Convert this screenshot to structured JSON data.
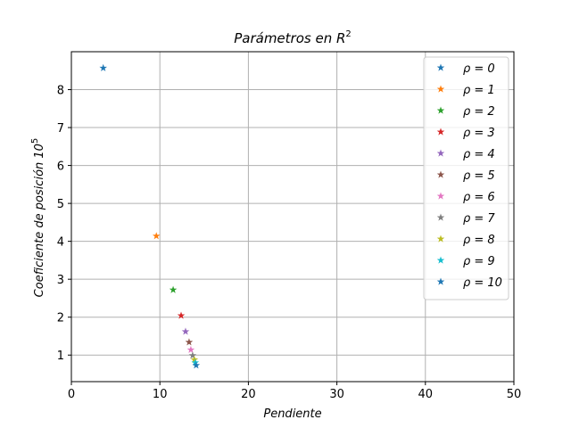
{
  "chart_data": {
    "type": "scatter",
    "title": "Parámetros en R",
    "title_sup": "2",
    "xlabel": "Pendiente",
    "ylabel": "Coeficiente de posición 10",
    "ylabel_sup": "5",
    "xlim": [
      0,
      50
    ],
    "ylim": [
      0.3,
      9.0
    ],
    "xticks": [
      0,
      10,
      20,
      30,
      40,
      50
    ],
    "yticks": [
      1,
      2,
      3,
      4,
      5,
      6,
      7,
      8
    ],
    "grid": true,
    "legend_position": "top-right",
    "marker": "star",
    "series": [
      {
        "name": "ρ = 0",
        "color": "#1f77b4",
        "x": 3.6,
        "y": 8.57
      },
      {
        "name": "ρ = 1",
        "color": "#ff7f0e",
        "x": 9.6,
        "y": 4.14
      },
      {
        "name": "ρ = 2",
        "color": "#2ca02c",
        "x": 11.5,
        "y": 2.72
      },
      {
        "name": "ρ = 3",
        "color": "#d62728",
        "x": 12.4,
        "y": 2.04
      },
      {
        "name": "ρ = 4",
        "color": "#9467bd",
        "x": 12.9,
        "y": 1.62
      },
      {
        "name": "ρ = 5",
        "color": "#8c564b",
        "x": 13.3,
        "y": 1.34
      },
      {
        "name": "ρ = 6",
        "color": "#e377c2",
        "x": 13.5,
        "y": 1.14
      },
      {
        "name": "ρ = 7",
        "color": "#7f7f7f",
        "x": 13.7,
        "y": 0.99
      },
      {
        "name": "ρ = 8",
        "color": "#bcbd22",
        "x": 13.9,
        "y": 0.88
      },
      {
        "name": "ρ = 9",
        "color": "#17becf",
        "x": 14.0,
        "y": 0.8
      },
      {
        "name": "ρ = 10",
        "color": "#1f77b4",
        "x": 14.1,
        "y": 0.73
      }
    ]
  }
}
